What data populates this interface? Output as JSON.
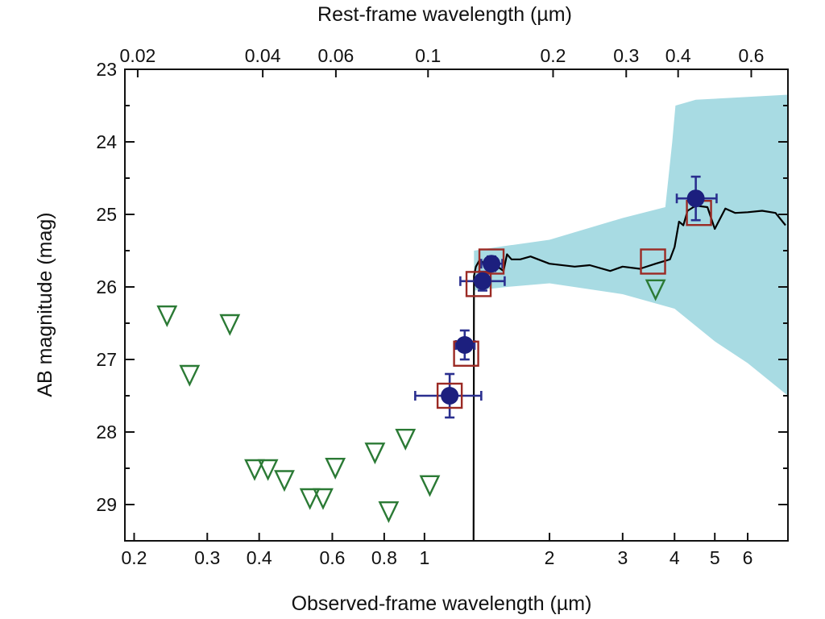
{
  "chart_data": {
    "type": "scatter",
    "title": "",
    "xlabel": "Observed-frame wavelength (µm)",
    "ylabel": "AB magnitude (mag)",
    "top_xlabel": "Rest-frame wavelength (µm)",
    "xscale": "log",
    "xlim": [
      0.19,
      7.5
    ],
    "ylim": [
      29.5,
      23
    ],
    "grid": false,
    "redshift_factor": 10.2,
    "x_ticks": [
      0.2,
      0.3,
      0.4,
      0.6,
      0.8,
      1,
      2,
      3,
      4,
      5,
      6
    ],
    "x_tick_labels": [
      "0.2",
      "0.3",
      "0.4",
      "0.6",
      "0.8",
      "1",
      "2",
      "3",
      "4",
      "5",
      "6"
    ],
    "top_ticks": [
      0.02,
      0.04,
      0.06,
      0.1,
      0.2,
      0.3,
      0.4,
      0.6
    ],
    "top_tick_labels": [
      "0.02",
      "0.04",
      "0.06",
      "0.1",
      "0.2",
      "0.3",
      "0.4",
      "0.6"
    ],
    "y_ticks": [
      23,
      24,
      25,
      26,
      27,
      28,
      29
    ],
    "y_tick_labels": [
      "23",
      "24",
      "25",
      "26",
      "27",
      "28",
      "29"
    ],
    "colors": {
      "detection": "#1c1f7e",
      "detection_error": "#2a2f8f",
      "model_box": "#9b2a24",
      "upper_limit": "#2b7a35",
      "uncertainty_band": "#a8dbe3",
      "sed": "#000000"
    },
    "series": [
      {
        "type": "scatter",
        "marker": "filled-circle-errorbars",
        "points": [
          {
            "x": 1.15,
            "y": 27.5,
            "xerr": [
              0.2,
              0.22
            ],
            "yerr": 0.3
          },
          {
            "x": 1.25,
            "y": 26.8,
            "xerr": [
              0.06,
              0.07
            ],
            "yerr": 0.2
          },
          {
            "x": 1.38,
            "y": 25.92,
            "xerr": [
              0.16,
              0.18
            ],
            "yerr": 0.13
          },
          {
            "x": 1.45,
            "y": 25.68,
            "xerr": [
              0.08,
              0.09
            ],
            "yerr": 0.1
          },
          {
            "x": 4.5,
            "y": 24.78,
            "xerr": [
              0.45,
              0.55
            ],
            "yerr": 0.3
          }
        ]
      },
      {
        "type": "scatter",
        "marker": "open-square",
        "points": [
          {
            "x": 1.15,
            "y": 27.5
          },
          {
            "x": 1.26,
            "y": 26.92
          },
          {
            "x": 1.35,
            "y": 25.96
          },
          {
            "x": 1.45,
            "y": 25.65
          },
          {
            "x": 3.55,
            "y": 25.65
          },
          {
            "x": 4.58,
            "y": 24.98
          }
        ]
      },
      {
        "type": "scatter",
        "marker": "open-down-triangle",
        "points": [
          {
            "x": 0.24,
            "y": 26.38
          },
          {
            "x": 0.272,
            "y": 27.2
          },
          {
            "x": 0.34,
            "y": 26.5
          },
          {
            "x": 0.39,
            "y": 28.5
          },
          {
            "x": 0.42,
            "y": 28.5
          },
          {
            "x": 0.46,
            "y": 28.65
          },
          {
            "x": 0.53,
            "y": 28.9
          },
          {
            "x": 0.57,
            "y": 28.9
          },
          {
            "x": 0.61,
            "y": 28.48
          },
          {
            "x": 0.76,
            "y": 28.27
          },
          {
            "x": 0.82,
            "y": 29.08
          },
          {
            "x": 0.9,
            "y": 28.08
          },
          {
            "x": 1.03,
            "y": 28.72
          },
          {
            "x": 3.6,
            "y": 26.02
          }
        ]
      },
      {
        "type": "line",
        "style": "sed",
        "points": [
          {
            "x": 1.313,
            "y": 29.5
          },
          {
            "x": 1.316,
            "y": 25.85
          },
          {
            "x": 1.33,
            "y": 25.72
          },
          {
            "x": 1.36,
            "y": 25.62
          },
          {
            "x": 1.4,
            "y": 25.7
          },
          {
            "x": 1.45,
            "y": 25.62
          },
          {
            "x": 1.5,
            "y": 25.72
          },
          {
            "x": 1.55,
            "y": 25.78
          },
          {
            "x": 1.58,
            "y": 25.55
          },
          {
            "x": 1.62,
            "y": 25.62
          },
          {
            "x": 1.7,
            "y": 25.62
          },
          {
            "x": 1.8,
            "y": 25.58
          },
          {
            "x": 2.0,
            "y": 25.68
          },
          {
            "x": 2.3,
            "y": 25.72
          },
          {
            "x": 2.5,
            "y": 25.7
          },
          {
            "x": 2.8,
            "y": 25.78
          },
          {
            "x": 3.0,
            "y": 25.72
          },
          {
            "x": 3.3,
            "y": 25.75
          },
          {
            "x": 3.6,
            "y": 25.68
          },
          {
            "x": 3.9,
            "y": 25.62
          },
          {
            "x": 4.0,
            "y": 25.45
          },
          {
            "x": 4.1,
            "y": 25.1
          },
          {
            "x": 4.2,
            "y": 25.15
          },
          {
            "x": 4.3,
            "y": 24.95
          },
          {
            "x": 4.5,
            "y": 24.88
          },
          {
            "x": 4.8,
            "y": 24.9
          },
          {
            "x": 5.0,
            "y": 25.2
          },
          {
            "x": 5.3,
            "y": 24.92
          },
          {
            "x": 5.6,
            "y": 24.98
          },
          {
            "x": 6.0,
            "y": 24.97
          },
          {
            "x": 6.5,
            "y": 24.95
          },
          {
            "x": 7.0,
            "y": 24.98
          },
          {
            "x": 7.4,
            "y": 25.15
          }
        ]
      },
      {
        "type": "area",
        "style": "uncertainty-band",
        "upper": [
          {
            "x": 1.316,
            "y": 25.5
          },
          {
            "x": 1.5,
            "y": 25.45
          },
          {
            "x": 2.0,
            "y": 25.35
          },
          {
            "x": 3.0,
            "y": 25.05
          },
          {
            "x": 3.8,
            "y": 24.9
          },
          {
            "x": 3.95,
            "y": 24.0
          },
          {
            "x": 4.02,
            "y": 23.5
          },
          {
            "x": 4.5,
            "y": 23.42
          },
          {
            "x": 6.0,
            "y": 23.38
          },
          {
            "x": 7.5,
            "y": 23.35
          }
        ],
        "lower": [
          {
            "x": 1.316,
            "y": 26.05
          },
          {
            "x": 1.58,
            "y": 26.0
          },
          {
            "x": 2.0,
            "y": 25.95
          },
          {
            "x": 3.0,
            "y": 26.1
          },
          {
            "x": 4.0,
            "y": 26.3
          },
          {
            "x": 5.0,
            "y": 26.75
          },
          {
            "x": 6.0,
            "y": 27.05
          },
          {
            "x": 7.5,
            "y": 27.5
          }
        ]
      }
    ]
  }
}
